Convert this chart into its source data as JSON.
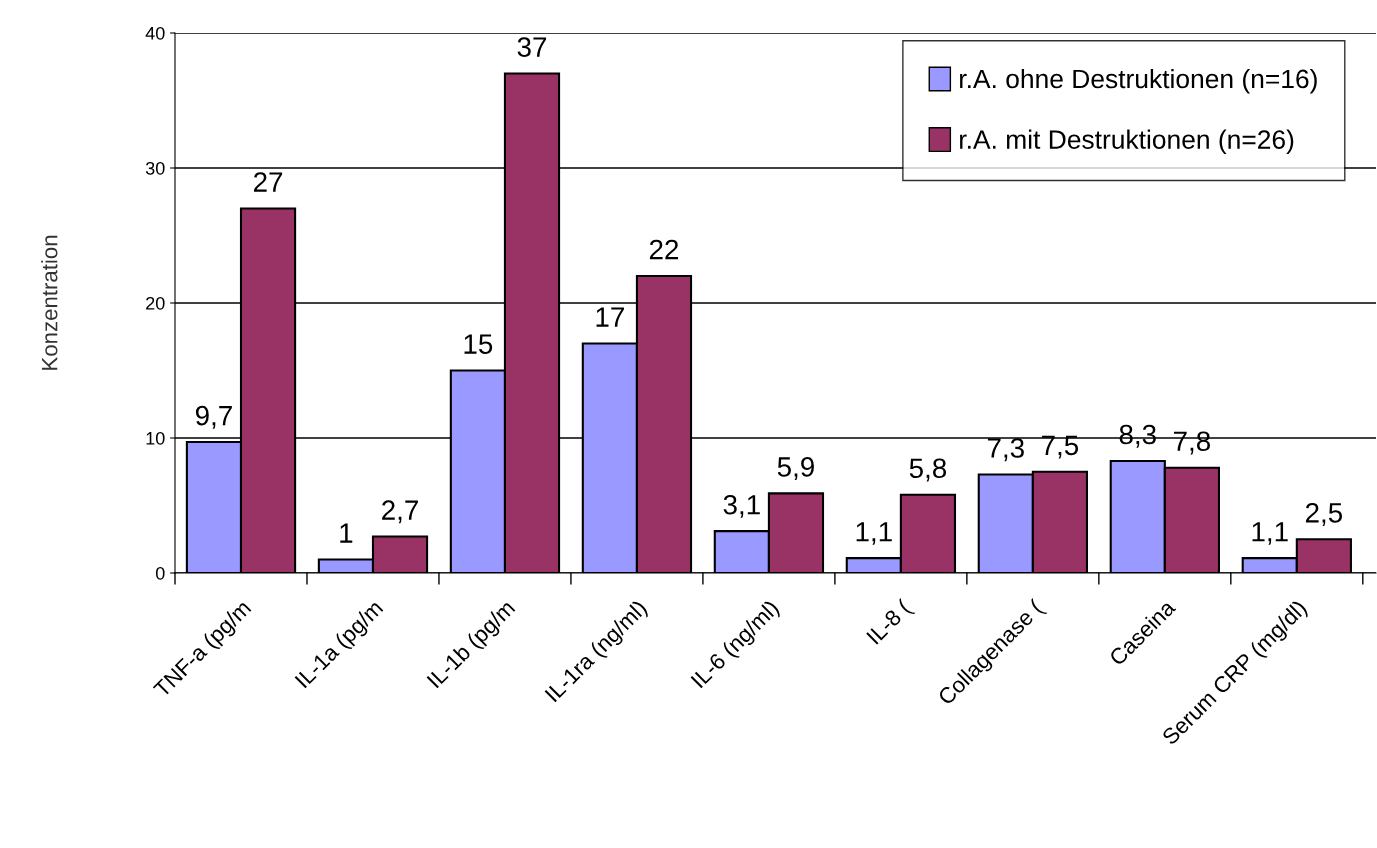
{
  "chart_data": {
    "type": "bar",
    "ylabel": "Konzentration",
    "categories": [
      "TNF-a (pg/m",
      "IL-1a (pg/m",
      "IL-1b (pg/m",
      "IL-1ra (ng/ml)",
      "IL-6 (ng/ml)",
      "IL-8 (",
      "Collagenase (",
      "Caseina",
      "Serum CRP (mg/dl)"
    ],
    "series": [
      {
        "name": "r.A. ohne Destruktionen (n=16)",
        "color": "#9999ff",
        "values": [
          9.7,
          1,
          15,
          17,
          3.1,
          1.1,
          7.3,
          8.3,
          1.1
        ],
        "value_labels": [
          "9,7",
          "1",
          "15",
          "17",
          "3,1",
          "1,1",
          "7,3",
          "8,3",
          "1,1"
        ]
      },
      {
        "name": "r.A. mit Destruktionen (n=26)",
        "color": "#993366",
        "values": [
          27,
          2.7,
          37,
          22,
          5.9,
          5.8,
          7.5,
          7.8,
          2.5
        ],
        "value_labels": [
          "27",
          "2,7",
          "37",
          "22",
          "5,9",
          "5,8",
          "7,5",
          "7,8",
          "2,5"
        ]
      }
    ],
    "ylim": [
      0,
      40
    ],
    "yticks": [
      0,
      10,
      20,
      30,
      40
    ],
    "grid": "y",
    "legend": "top right"
  }
}
